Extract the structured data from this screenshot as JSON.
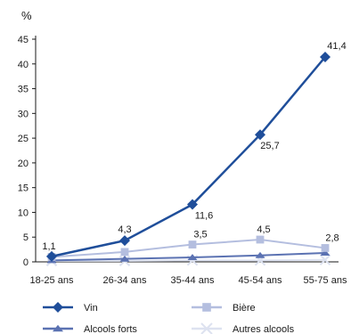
{
  "chart_data": {
    "type": "line",
    "ylabel": "%",
    "xlabel": "",
    "ylim": [
      0,
      45
    ],
    "yticks": [
      0,
      5,
      10,
      15,
      20,
      25,
      30,
      35,
      40,
      45
    ],
    "categories": [
      "18-25 ans",
      "26-34 ans",
      "35-44 ans",
      "45-54 ans",
      "55-75 ans"
    ],
    "grid": false,
    "legend_position": "bottom",
    "series": [
      {
        "name": "Vin",
        "values": [
          1.1,
          4.3,
          11.6,
          25.7,
          41.4
        ],
        "labels": [
          "1,1",
          "4,3",
          "11,6",
          "25,7",
          "41,4"
        ],
        "color": "#1f4e9a",
        "marker": "diamond"
      },
      {
        "name": "Bière",
        "values": [
          1.0,
          2.0,
          3.5,
          4.5,
          2.8
        ],
        "labels": [
          "",
          "",
          "3,5",
          "4,5",
          "2,8"
        ],
        "color": "#b4bedf",
        "marker": "square"
      },
      {
        "name": "Alcools forts",
        "values": [
          0.3,
          0.6,
          0.9,
          1.3,
          1.8
        ],
        "labels": [
          "",
          "",
          "",
          "",
          ""
        ],
        "color": "#5b72b2",
        "marker": "triangle"
      },
      {
        "name": "Autres alcools",
        "values": [
          0.2,
          0.2,
          0.3,
          0.3,
          0.4
        ],
        "labels": [
          "",
          "",
          "",
          "",
          ""
        ],
        "color": "#dde2f0",
        "marker": "cross"
      }
    ]
  }
}
